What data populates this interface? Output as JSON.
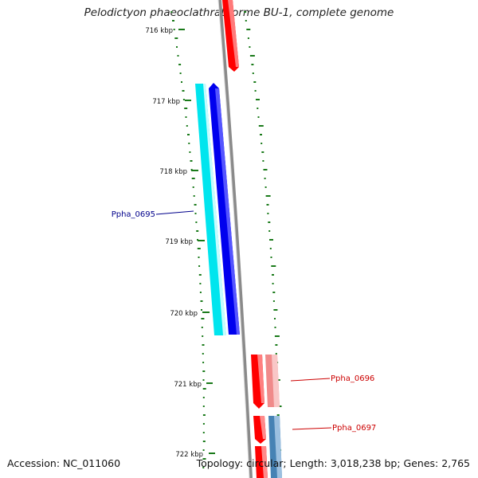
{
  "title": "Pelodictyon phaeoclathratiforme BU-1, complete genome",
  "footer": {
    "accession": "Accession: NC_011060",
    "summary": "Topology: circular; Length: 3,018,238 bp; Genes: 2,765"
  },
  "ruler": {
    "ticks": [
      "716 kbp",
      "717 kbp",
      "718 kbp",
      "719 kbp",
      "720 kbp",
      "721 kbp",
      "722 kbp"
    ]
  },
  "genes": [
    {
      "id": "Ppha_0695",
      "label": "Ppha_0695",
      "color": "#0000ee",
      "label_color": "#00008b"
    },
    {
      "id": "Ppha_0696",
      "label": "Ppha_0696",
      "color": "#ff0000",
      "label_color": "#cc0000"
    },
    {
      "id": "Ppha_0697",
      "label": "Ppha_0697",
      "color": "#ff0000",
      "label_color": "#cc0000"
    }
  ],
  "colors": {
    "cds_forward": "#ff0000",
    "cds_reverse": "#0000ee",
    "protein_forward": "#f08a8a",
    "protein_reverse": "#00e5ee",
    "protein_alt": "#4682b4",
    "backbone": "#808080",
    "gc_skew": "#1a7a1a"
  }
}
